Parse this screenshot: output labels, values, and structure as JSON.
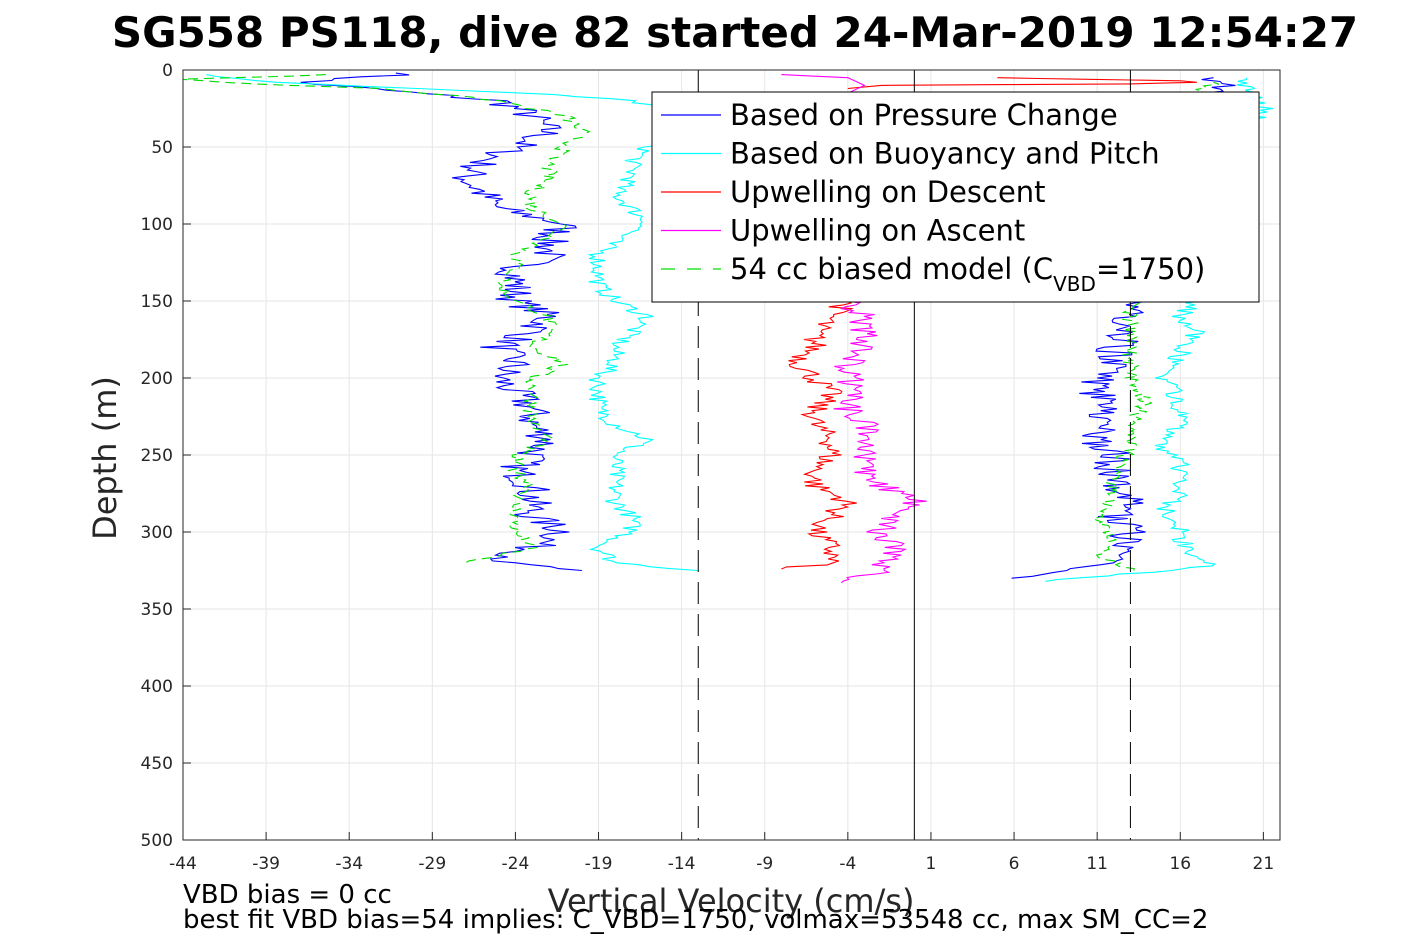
{
  "chart_data": {
    "type": "line",
    "title": "SG558 PS118, dive 82 started 24-Mar-2019 12:54:27",
    "xlabel": "Vertical Velocity (cm/s)",
    "ylabel": "Depth (m)",
    "xlim": [
      -44,
      22
    ],
    "ylim": [
      0,
      500
    ],
    "y_reversed": true,
    "grid": true,
    "legend_position": "top-right",
    "xticks": [
      -44,
      -39,
      -34,
      -29,
      -24,
      -19,
      -14,
      -9,
      -4,
      1,
      6,
      11,
      16,
      21
    ],
    "yticks": [
      0,
      50,
      100,
      150,
      200,
      250,
      300,
      350,
      400,
      450,
      500
    ],
    "vertical_lines": [
      {
        "x": -13,
        "style": "dashed",
        "color": "#000000"
      },
      {
        "x": 0,
        "style": "solid",
        "color": "#000000"
      },
      {
        "x": 13,
        "style": "dashed",
        "color": "#000000"
      }
    ],
    "legend": [
      {
        "label": "Based on Pressure Change",
        "color": "#0000ff",
        "style": "solid"
      },
      {
        "label": "Based on Buoyancy and Pitch",
        "color": "#00ffff",
        "style": "solid"
      },
      {
        "label": "Upwelling on Descent",
        "color": "#ff0000",
        "style": "solid"
      },
      {
        "label": "Upwelling on Ascent",
        "color": "#ff00ff",
        "style": "solid"
      },
      {
        "label_pre": "54 cc biased model (C",
        "label_sub": "VBD",
        "label_post": "=1750)",
        "color": "#00dd00",
        "style": "dashed"
      }
    ],
    "series": [
      {
        "name": "Based on Pressure Change",
        "color": "#0000ff",
        "style": "solid",
        "descent": {
          "depth": [
            2,
            8,
            12,
            20,
            30,
            40,
            50,
            60,
            70,
            80,
            90,
            100,
            110,
            120,
            130,
            140,
            150,
            160,
            170,
            180,
            190,
            200,
            210,
            220,
            230,
            240,
            250,
            260,
            270,
            280,
            290,
            300,
            310,
            320,
            325
          ],
          "v": [
            -30,
            -37,
            -33,
            -25,
            -23,
            -22,
            -24,
            -26,
            -27,
            -26,
            -25,
            -21,
            -22,
            -22,
            -24,
            -24,
            -24,
            -22,
            -23,
            -25,
            -24,
            -25,
            -24,
            -23,
            -23,
            -22,
            -23,
            -24,
            -23,
            -23,
            -23,
            -21,
            -23,
            -25,
            -20
          ]
        },
        "ascent": {
          "depth": [
            330,
            325,
            320,
            310,
            300,
            290,
            280,
            270,
            260,
            250,
            240,
            230,
            220,
            210,
            200,
            190,
            180,
            170,
            160,
            150,
            140,
            120,
            100,
            80,
            60,
            40,
            20,
            10,
            5
          ],
          "v": [
            5,
            9,
            12,
            12,
            13,
            12,
            13,
            12,
            12,
            12,
            11,
            11,
            12,
            11,
            11,
            12,
            12,
            13,
            13,
            13,
            14,
            15,
            16,
            17,
            17,
            17,
            18,
            19,
            18
          ]
        }
      },
      {
        "name": "Based on Buoyancy and Pitch",
        "color": "#00ffff",
        "style": "solid",
        "descent": {
          "depth": [
            3,
            8,
            12,
            16,
            20,
            25,
            30,
            40,
            50,
            60,
            70,
            80,
            90,
            100,
            110,
            120,
            130,
            140,
            150,
            160,
            170,
            180,
            190,
            200,
            210,
            220,
            230,
            240,
            250,
            260,
            270,
            280,
            290,
            300,
            310,
            320,
            325
          ],
          "v": [
            -43,
            -38,
            -30,
            -22,
            -17,
            -15,
            -14,
            -15,
            -16,
            -17,
            -17,
            -18,
            -17,
            -16,
            -18,
            -19,
            -19,
            -19,
            -18,
            -16,
            -17,
            -18,
            -18,
            -19,
            -19,
            -19,
            -18,
            -16,
            -18,
            -18,
            -18,
            -18,
            -17,
            -17,
            -19,
            -18,
            -13
          ]
        },
        "ascent": {
          "depth": [
            332,
            325,
            322,
            315,
            305,
            295,
            285,
            275,
            265,
            255,
            245,
            230,
            215,
            200,
            185,
            170,
            160,
            150,
            130,
            100,
            70,
            40,
            25,
            12,
            5
          ],
          "v": [
            8,
            15,
            18,
            17,
            16,
            16,
            15,
            16,
            16,
            16,
            15,
            16,
            16,
            15,
            16,
            17,
            16,
            17,
            18,
            19,
            20,
            20,
            21,
            20,
            20
          ]
        }
      },
      {
        "name": "Upwelling on Descent",
        "color": "#ff0000",
        "style": "solid",
        "descent": {
          "depth": [
            150,
            160,
            170,
            180,
            190,
            200,
            210,
            220,
            230,
            240,
            250,
            260,
            270,
            280,
            290,
            300,
            310,
            320,
            324
          ],
          "v": [
            -4,
            -5,
            -6,
            -6,
            -7,
            -6,
            -5,
            -6,
            -6,
            -5,
            -5,
            -6,
            -6,
            -4,
            -5,
            -6,
            -5,
            -5,
            -8
          ]
        },
        "top": {
          "depth": [
            5,
            6,
            7,
            8,
            9,
            10,
            12
          ],
          "v": [
            5,
            10,
            16,
            17,
            13,
            -2,
            -4
          ]
        }
      },
      {
        "name": "Upwelling on Ascent",
        "color": "#ff00ff",
        "style": "solid",
        "ascent": {
          "depth": [
            333,
            325,
            320,
            310,
            300,
            290,
            280,
            270,
            260,
            250,
            240,
            230,
            220,
            210,
            200,
            190,
            180,
            170,
            160,
            150
          ],
          "v": [
            -5,
            -2,
            -2,
            -1,
            -2,
            -1,
            0,
            -2,
            -3,
            -3,
            -3,
            -3,
            -4,
            -3,
            -4,
            -4,
            -3,
            -3,
            -3,
            -4
          ]
        },
        "top": {
          "depth": [
            15,
            10,
            5,
            3
          ],
          "v": [
            -4,
            -3,
            -4,
            -8
          ]
        }
      },
      {
        "name": "54 cc biased model (CVBD=1750)",
        "color": "#00dd00",
        "style": "dashed",
        "descent": {
          "depth": [
            3,
            6,
            9,
            12,
            20,
            30,
            40,
            50,
            60,
            70,
            80,
            90,
            100,
            110,
            120,
            130,
            140,
            150,
            160,
            170,
            180,
            190,
            200,
            210,
            220,
            230,
            240,
            250,
            260,
            270,
            280,
            290,
            300,
            310,
            320
          ],
          "v": [
            -35,
            -44,
            -40,
            -32,
            -25,
            -21,
            -20,
            -21,
            -22,
            -22,
            -23,
            -23,
            -21,
            -22,
            -24,
            -24,
            -25,
            -24,
            -22,
            -22,
            -23,
            -21,
            -23,
            -23,
            -23,
            -23,
            -22,
            -24,
            -24,
            -23,
            -24,
            -24,
            -24,
            -23,
            -27
          ]
        },
        "ascent": {
          "depth": [
            325,
            315,
            305,
            290,
            275,
            260,
            245,
            230,
            215,
            200,
            185,
            170,
            155,
            140,
            100,
            60,
            30,
            15,
            8
          ],
          "v": [
            13,
            11,
            12,
            11,
            12,
            12,
            13,
            13,
            14,
            13,
            13,
            13,
            13,
            14,
            15,
            16,
            17,
            17,
            18
          ]
        }
      }
    ]
  },
  "notes": {
    "line1": "VBD bias = 0 cc",
    "line2": "best fit VBD bias=54 implies: C_VBD=1750, volmax=53548 cc, max SM_CC=2"
  }
}
